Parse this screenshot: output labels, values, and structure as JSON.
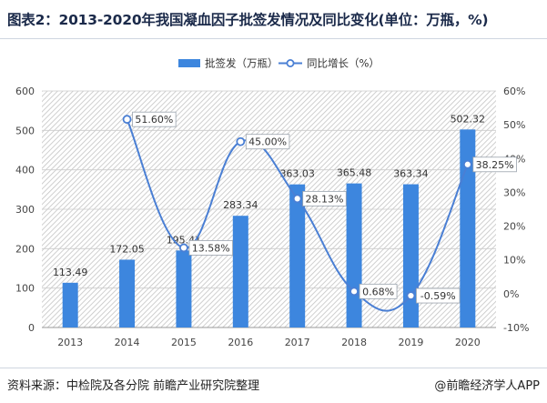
{
  "header": {
    "title": "图表2：2013-2020年我国凝血因子批签发情况及同比变化(单位：万瓶，%)"
  },
  "footer": {
    "source": "资料来源：中检院及各分院 前瞻产业研究院整理",
    "brand": "@前瞻经济学人APP"
  },
  "colors": {
    "bar": "#3d86de",
    "line": "#4a7fd4",
    "label_border": "#9aa3ad",
    "grid": "#cccccc"
  },
  "chart_data": {
    "type": "bar",
    "title": "",
    "categories": [
      "2013",
      "2014",
      "2015",
      "2016",
      "2017",
      "2018",
      "2019",
      "2020"
    ],
    "series": [
      {
        "name": "批签发（万瓶）",
        "type": "bar",
        "axis": "left",
        "values": [
          113.49,
          172.05,
          195.41,
          283.34,
          363.03,
          365.48,
          363.34,
          502.32
        ],
        "labels": [
          "113.49",
          "172.05",
          "195.41",
          "283.34",
          "363.03",
          "365.48",
          "363.34",
          "502.32"
        ]
      },
      {
        "name": "同比增长（%）",
        "type": "line",
        "axis": "right",
        "values": [
          null,
          51.6,
          13.58,
          45.0,
          28.13,
          0.68,
          -0.59,
          38.25
        ],
        "labels": [
          "",
          "51.60%",
          "13.58%",
          "45.00%",
          "28.13%",
          "0.68%",
          "-0.59%",
          "38.25%"
        ]
      }
    ],
    "ylim_left": [
      0,
      600
    ],
    "yticks_left": [
      "0",
      "100",
      "200",
      "300",
      "400",
      "500",
      "600"
    ],
    "ylim_right": [
      -10,
      60
    ],
    "yticks_right": [
      "-10%",
      "0%",
      "10%",
      "20%",
      "30%",
      "40%",
      "50%",
      "60%"
    ],
    "grid": true,
    "legend_position": "top-center"
  }
}
